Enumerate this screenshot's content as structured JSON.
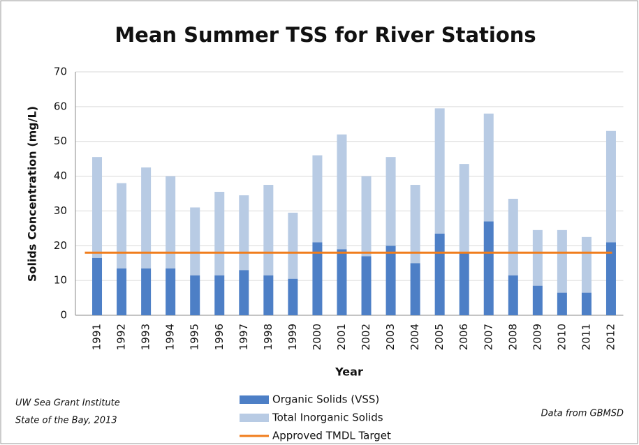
{
  "chart_data": {
    "type": "stacked-bar",
    "title": "Mean Summer TSS for River Stations",
    "x_label": "Year",
    "y_label": "Solids Concentration (mg/L)",
    "categories": [
      "1991",
      "1992",
      "1993",
      "1994",
      "1995",
      "1996",
      "1997",
      "1998",
      "1999",
      "2000",
      "2001",
      "2002",
      "2003",
      "2004",
      "2005",
      "2006",
      "2007",
      "2008",
      "2009",
      "2010",
      "2011",
      "2012"
    ],
    "series": [
      {
        "name": "Organic Solids (VSS)",
        "color": "#4d7fc6",
        "values": [
          16.5,
          13.5,
          13.5,
          13.5,
          11.5,
          11.5,
          13,
          11.5,
          10.5,
          21,
          19,
          17,
          20,
          15,
          23.5,
          18,
          27,
          11.5,
          8.5,
          6.5,
          6.5,
          21
        ]
      },
      {
        "name": "Total Inorganic Solids",
        "color": "#b8cbe4",
        "values": [
          29,
          24.5,
          29,
          26.5,
          19.5,
          24,
          21.5,
          26,
          19,
          25,
          33,
          23,
          25.5,
          22.5,
          36,
          25.5,
          31,
          22,
          16,
          18,
          16,
          32
        ]
      }
    ],
    "target": {
      "name": "Approved TMDL Target",
      "color": "#f07d1c",
      "value": 18
    },
    "ylim": [
      0,
      70
    ],
    "yticks": [
      0,
      10,
      20,
      30,
      40,
      50,
      60,
      70
    ],
    "grid": true,
    "notes": [
      "UW Sea Grant Institute",
      "State of the Bay, 2013"
    ],
    "source": "Data from GBMSD"
  }
}
